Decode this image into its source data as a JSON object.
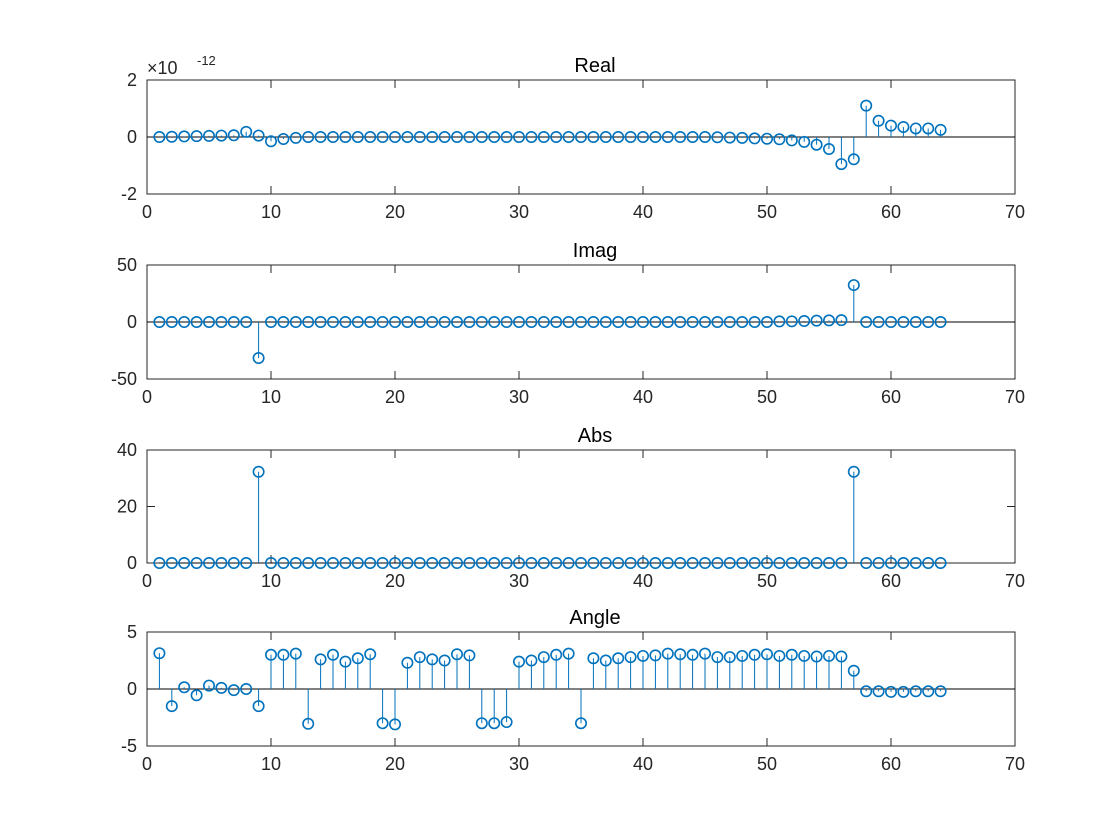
{
  "chart_data": [
    {
      "type": "stem",
      "title": "Real",
      "exponent_base": "×10",
      "exponent_power": "-12",
      "xlim": [
        0,
        70
      ],
      "ylim": [
        -2,
        2
      ],
      "xticks": [
        0,
        10,
        20,
        30,
        40,
        50,
        60,
        70
      ],
      "yticks": [
        -2,
        0,
        2
      ],
      "ytick_labels": [
        "-2",
        "0",
        "2"
      ],
      "x_start": 1,
      "values": [
        0,
        0.01,
        0.02,
        0.03,
        0.04,
        0.05,
        0.06,
        0.18,
        0.05,
        -0.15,
        -0.07,
        -0.03,
        0,
        0,
        0,
        0,
        0,
        0,
        0,
        0,
        0,
        0,
        0,
        0,
        0,
        0,
        0,
        0,
        0,
        0,
        0,
        0,
        0,
        0,
        0,
        0,
        0,
        0,
        0,
        0,
        0,
        0,
        0,
        0,
        0,
        -0.01,
        -0.02,
        -0.03,
        -0.05,
        -0.06,
        -0.08,
        -0.12,
        -0.17,
        -0.27,
        -0.42,
        -0.95,
        -0.78,
        1.1,
        0.57,
        0.4,
        0.35,
        0.3,
        0.3,
        0.25
      ]
    },
    {
      "type": "stem",
      "title": "Imag",
      "xlim": [
        0,
        70
      ],
      "ylim": [
        -50,
        50
      ],
      "xticks": [
        0,
        10,
        20,
        30,
        40,
        50,
        60,
        70
      ],
      "yticks": [
        -50,
        0,
        50
      ],
      "ytick_labels": [
        "-50",
        "0",
        "50"
      ],
      "x_start": 1,
      "values": [
        0,
        0,
        0,
        0,
        0,
        0,
        0,
        0,
        -31.6,
        0,
        0,
        0,
        0,
        0,
        0,
        0,
        0,
        0,
        0,
        0,
        0,
        0,
        0,
        0,
        0,
        0,
        0,
        0,
        0,
        0,
        0,
        0,
        0,
        0,
        0,
        0,
        0,
        0,
        0,
        0,
        0,
        0,
        0,
        0,
        0,
        0,
        0,
        0,
        0,
        0,
        0.5,
        0.6,
        0.9,
        1.2,
        1.4,
        1.6,
        32.4,
        0,
        0,
        0,
        0,
        0,
        0,
        0
      ]
    },
    {
      "type": "stem",
      "title": "Abs",
      "xlim": [
        0,
        70
      ],
      "ylim": [
        0,
        40
      ],
      "xticks": [
        0,
        10,
        20,
        30,
        40,
        50,
        60,
        70
      ],
      "yticks": [
        0,
        20,
        40
      ],
      "ytick_labels": [
        "0",
        "20",
        "40"
      ],
      "x_start": 1,
      "values": [
        0,
        0,
        0,
        0,
        0,
        0,
        0,
        0,
        32.3,
        0,
        0,
        0,
        0,
        0,
        0,
        0,
        0,
        0,
        0,
        0,
        0,
        0,
        0,
        0,
        0,
        0,
        0,
        0,
        0,
        0,
        0,
        0,
        0,
        0,
        0,
        0,
        0,
        0,
        0,
        0,
        0,
        0,
        0,
        0,
        0,
        0,
        0,
        0,
        0,
        0,
        0,
        0,
        0,
        0,
        0,
        0,
        32.3,
        0,
        0,
        0,
        0,
        0,
        0,
        0
      ]
    },
    {
      "type": "stem",
      "title": "Angle",
      "xlim": [
        0,
        70
      ],
      "ylim": [
        -5,
        5
      ],
      "xticks": [
        0,
        10,
        20,
        30,
        40,
        50,
        60,
        70
      ],
      "yticks": [
        -5,
        0,
        5
      ],
      "ytick_labels": [
        "-5",
        "0",
        "5"
      ],
      "x_start": 1,
      "values": [
        3.14,
        -1.5,
        0.15,
        -0.55,
        0.3,
        0.1,
        -0.1,
        0,
        -1.5,
        3.0,
        3.0,
        3.1,
        -3.05,
        2.6,
        3.0,
        2.4,
        2.7,
        3.05,
        -3.0,
        -3.1,
        2.3,
        2.8,
        2.6,
        2.5,
        3.05,
        2.95,
        -3.0,
        -3.0,
        -2.9,
        2.4,
        2.5,
        2.8,
        3.0,
        3.1,
        -3.0,
        2.7,
        2.5,
        2.7,
        2.8,
        2.9,
        2.95,
        3.1,
        3.05,
        3.0,
        3.1,
        2.8,
        2.8,
        2.9,
        3.0,
        3.05,
        2.9,
        3.0,
        2.9,
        2.85,
        2.9,
        2.85,
        1.6,
        -0.2,
        -0.2,
        -0.25,
        -0.25,
        -0.2,
        -0.2,
        -0.2
      ]
    }
  ],
  "colors": {
    "stem": "#0072BD",
    "axis": "#262626",
    "baseline": "#000000"
  }
}
